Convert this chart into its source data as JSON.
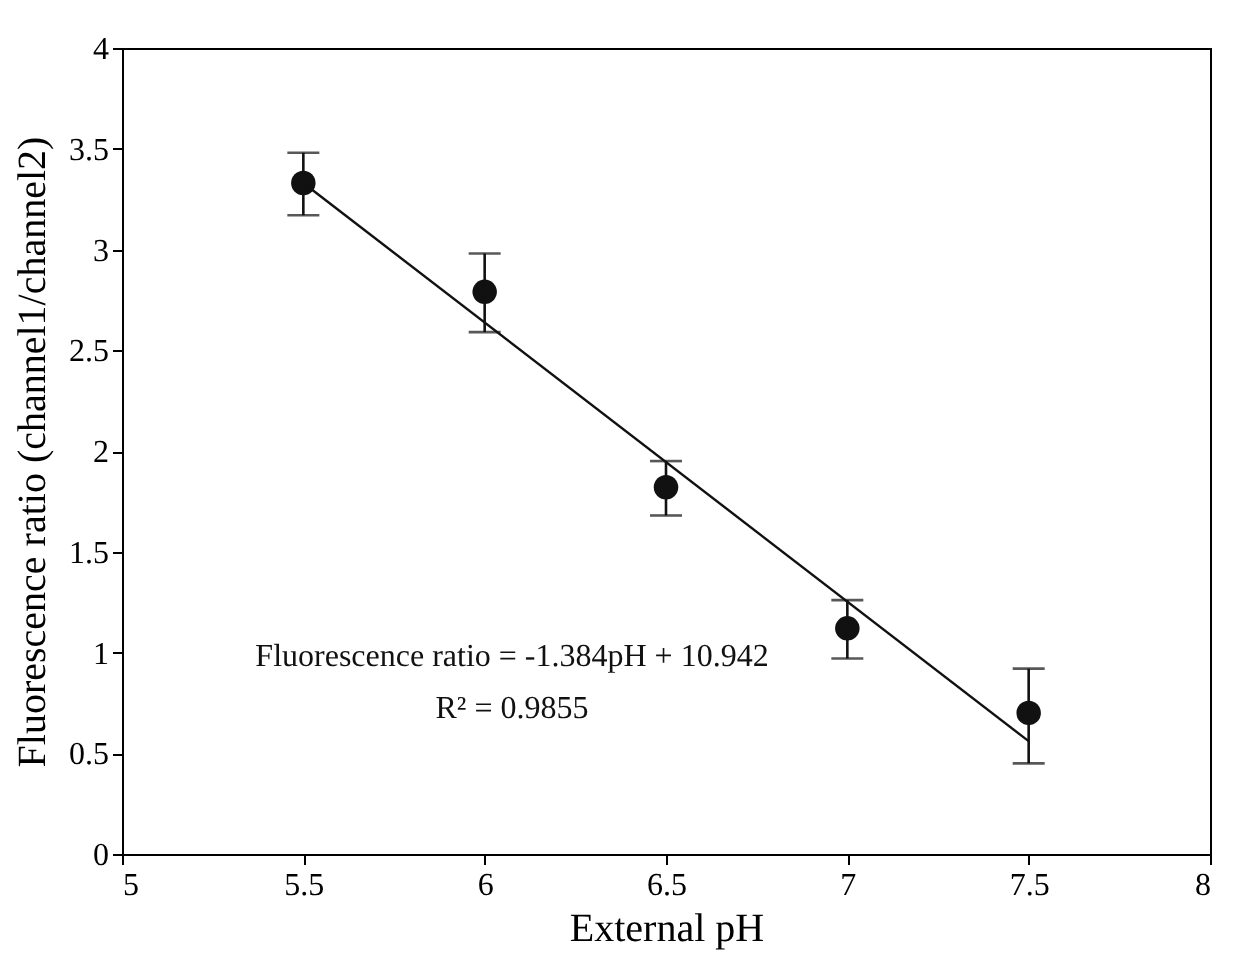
{
  "chart_data": {
    "type": "scatter",
    "xlabel": "External pH",
    "ylabel": "Fluorescence ratio (channel1/channel2)",
    "x": [
      5.5,
      6,
      6.5,
      7,
      7.5
    ],
    "series": [
      {
        "color": "#111111",
        "marker": "circle",
        "values": [
          3.33,
          2.79,
          1.82,
          1.12,
          0.7
        ],
        "errors": [
          [
            3.17,
            3.48
          ],
          [
            2.59,
            2.98
          ],
          [
            1.68,
            1.95
          ],
          [
            0.97,
            1.26
          ],
          [
            0.45,
            0.92
          ]
        ]
      },
      {
        "type": "line",
        "color": "#111111",
        "marker": "none",
        "line_style": "solid",
        "x": [
          5.5,
          7.5
        ],
        "values": [
          3.33,
          0.56
        ]
      }
    ],
    "xlim": [
      5,
      8
    ],
    "xticks": [
      5,
      5.5,
      6,
      6.5,
      7,
      7.5,
      8
    ],
    "ylim": [
      0,
      4
    ],
    "yticks": [
      0,
      0.5,
      1,
      1.5,
      2,
      2.5,
      3,
      3.5,
      4
    ],
    "grid": false,
    "annotations": [
      "Fluorescence ratio = -1.384pH + 10.942",
      "R² = 0.9855"
    ]
  }
}
